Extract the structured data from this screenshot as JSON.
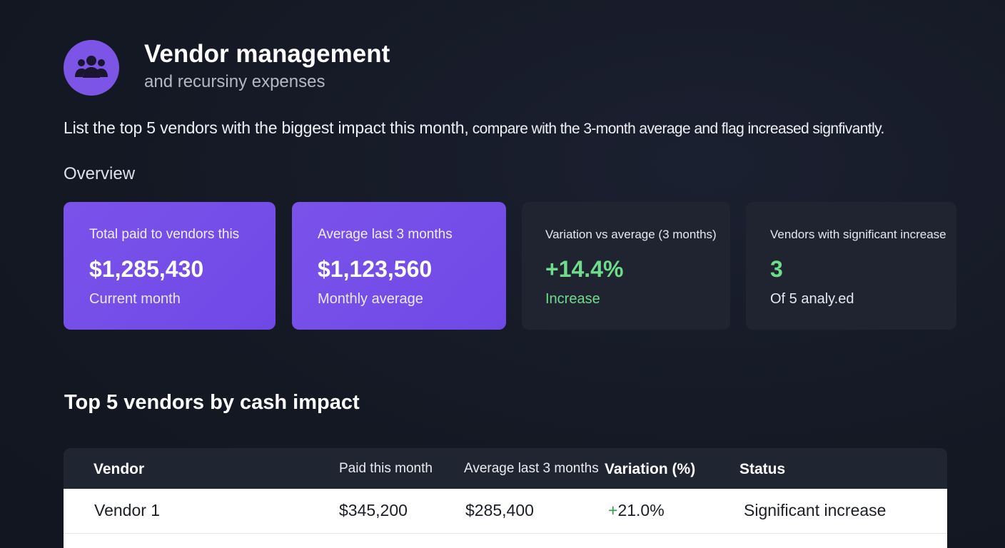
{
  "header": {
    "title": "Vendor management",
    "subtitle": "and recursiny expenses",
    "icon": "users-group-icon",
    "accent": "#7c55e6"
  },
  "prompt": {
    "main": "List the top 5 vendors with the biggest impact this month,",
    "rest": " compare with the 3-month average and flag increased signfivantly."
  },
  "overview": {
    "label": "Overview",
    "cards": [
      {
        "label": "Total paid to vendors this",
        "value": "$1,285,430",
        "sub": "Current month"
      },
      {
        "label": "Average last 3 months",
        "value": "$1,123,560",
        "sub": "Monthly average"
      },
      {
        "label": "Variation vs average (3 months)",
        "value": "+14.4%",
        "sub": "Increase"
      },
      {
        "label": "Vendors with significant increase",
        "value": "3",
        "sub": "Of 5 analy.ed"
      }
    ]
  },
  "table": {
    "title": "Top 5 vendors by cash impact",
    "columns": [
      "Vendor",
      "Paid this month",
      "Average last 3 months",
      "Variation (%)",
      "Status"
    ],
    "rows": [
      {
        "vendor": "Vendor 1",
        "paid": "$345,200",
        "average": "$285,400",
        "variation_sign": "+",
        "variation": "21.0%",
        "status": "Significant increase"
      }
    ]
  },
  "colors": {
    "background": "#141823",
    "card_purple": "#7450e8",
    "card_dark": "#1f2430",
    "positive": "#6fdc8c"
  }
}
